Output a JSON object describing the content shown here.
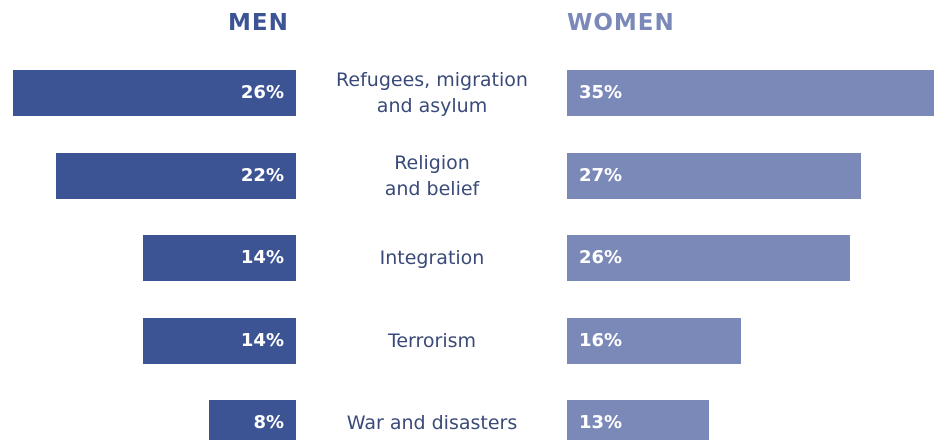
{
  "chart_data": {
    "type": "butterfly",
    "series_titles": [
      "MEN",
      "WOMEN"
    ],
    "categories": [
      "Refugees, migration\nand asylum",
      "Religion\nand belief",
      "Integration",
      "Terrorism",
      "War and disasters"
    ],
    "series": [
      {
        "name": "MEN",
        "color": "#3d5494",
        "values": [
          26,
          22,
          14,
          14,
          8
        ],
        "value_labels": [
          "26%",
          "22%",
          "14%",
          "14%",
          "8%"
        ]
      },
      {
        "name": "WOMEN",
        "color": "#7b89b8",
        "values": [
          35,
          27,
          26,
          16,
          13
        ],
        "value_labels": [
          "35%",
          "27%",
          "26%",
          "16%",
          "13%"
        ]
      }
    ]
  }
}
